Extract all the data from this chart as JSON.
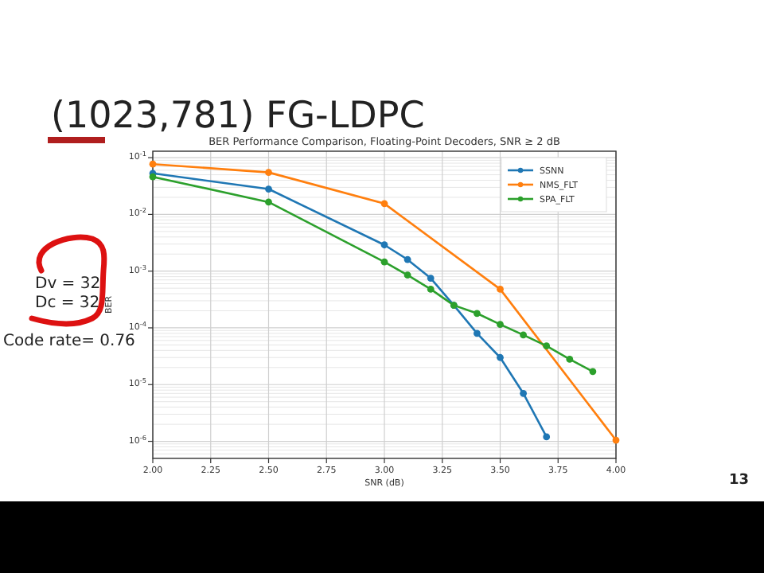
{
  "chart_data": {
    "type": "line",
    "title": "BER Performance Comparison, Floating-Point Decoders, SNR ≥ 2 dB",
    "subtitle": "(1023,781) FG-LDPC",
    "xlabel": "SNR (dB)",
    "ylabel": "BER",
    "log": "y",
    "grid": true,
    "legend": "top right",
    "marker": "circle",
    "line_style": "solid",
    "xlim": [
      2,
      4
    ],
    "xticks": [
      {
        "value": 2,
        "label": "2.00"
      },
      {
        "value": 2.25,
        "label": "2.25"
      },
      {
        "value": 2.5,
        "label": "2.50"
      },
      {
        "value": 2.75,
        "label": "2.75"
      },
      {
        "value": 3,
        "label": "3.00"
      },
      {
        "value": 3.25,
        "label": "3.25"
      },
      {
        "value": 3.5,
        "label": "3.50"
      },
      {
        "value": 3.75,
        "label": "3.75"
      },
      {
        "value": 4,
        "label": "4.00"
      }
    ],
    "ylim": [
      5e-07,
      0.13
    ],
    "yticks": [
      {
        "value": 1e-06,
        "label": "10$^{-6}$"
      },
      {
        "value": 1e-05,
        "label": "10$^{-5}$"
      },
      {
        "value": 0.0001,
        "label": "10$^{-4}$"
      },
      {
        "value": 0.001,
        "label": "10$^{-3}$"
      },
      {
        "value": 0.01,
        "label": "10$^{-2}$"
      },
      {
        "value": 0.1,
        "label": "10$^{-1}$"
      }
    ],
    "series": [
      {
        "name": "SSNN",
        "color": "#1f77b4",
        "x": [
          2,
          2.5,
          3,
          3.1,
          3.2,
          3.3,
          3.4,
          3.5,
          3.6,
          3.7
        ],
        "values": [
          0.053,
          0.028,
          0.0029,
          0.0016,
          0.00075,
          0.00025,
          8e-05,
          3e-05,
          7e-06,
          1.2e-06
        ]
      },
      {
        "name": "NMS_FLT",
        "color": "#ff7f0e",
        "x": [
          2,
          2.5,
          3,
          3.5,
          4
        ],
        "values": [
          0.077,
          0.055,
          0.0155,
          0.00048,
          1.05e-06
        ]
      },
      {
        "name": "SPA_FLT",
        "color": "#2ca02c",
        "x": [
          2,
          2.5,
          3,
          3.1,
          3.2,
          3.3,
          3.4,
          3.5,
          3.6,
          3.7,
          3.8,
          3.9
        ],
        "values": [
          0.046,
          0.0165,
          0.00145,
          0.00085,
          0.00048,
          0.00025,
          0.00018,
          0.000115,
          7.5e-05,
          4.8e-05,
          2.8e-05,
          1.7e-05
        ]
      }
    ],
    "annotations": [
      "Dv = 32",
      "Dc = 32",
      "Code rate= 0.76",
      "13"
    ]
  }
}
